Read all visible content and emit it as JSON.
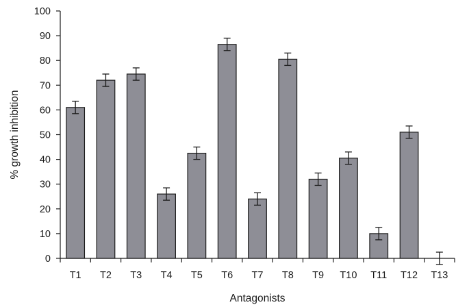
{
  "chart_data": {
    "type": "bar",
    "title": "",
    "xlabel": "Antagonists",
    "ylabel": "% growth inhibition",
    "ylim": [
      0,
      100
    ],
    "yticks": [
      0,
      10,
      20,
      30,
      40,
      50,
      60,
      70,
      80,
      90,
      100
    ],
    "categories": [
      "T1",
      "T2",
      "T3",
      "T4",
      "T5",
      "T6",
      "T7",
      "T8",
      "T9",
      "T10",
      "T11",
      "T12",
      "T13"
    ],
    "values": [
      61,
      72,
      74.5,
      26,
      42.5,
      86.5,
      24,
      80.5,
      32,
      40.5,
      10,
      51,
      0
    ],
    "errors": [
      2.5,
      2.5,
      2.5,
      2.5,
      2.5,
      2.5,
      2.5,
      2.5,
      2.5,
      2.5,
      2.5,
      2.5,
      2.5
    ],
    "bar_color": "#8e8e96",
    "bar_stroke": "#1a1a1a",
    "grid": false,
    "legend": "none"
  }
}
